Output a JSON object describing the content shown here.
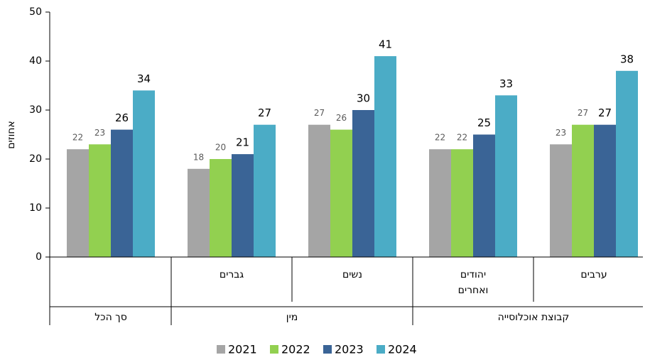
{
  "chart_data": {
    "type": "bar",
    "y_label": "אחוזים",
    "categories": [
      null,
      "גברים",
      "נשים",
      "יהודים ואחרים",
      "ערבים"
    ],
    "category_groups": [
      {
        "label": "סך הכל",
        "span": 1
      },
      {
        "label": "מין",
        "span": 2
      },
      {
        "label": "קבוצת אוכלוסייה",
        "span": 2
      }
    ],
    "series": [
      {
        "name": "2021",
        "color": "#a5a5a5",
        "values": [
          22,
          18,
          27,
          22,
          23
        ]
      },
      {
        "name": "2022",
        "color": "#92d050",
        "values": [
          23,
          20,
          26,
          22,
          27
        ]
      },
      {
        "name": "2023",
        "color": "#3a6496",
        "values": [
          26,
          21,
          30,
          25,
          27
        ]
      },
      {
        "name": "2024",
        "color": "#4bacc6",
        "values": [
          34,
          27,
          41,
          33,
          38
        ]
      }
    ],
    "ylim": [
      0,
      50
    ],
    "yticks": [
      0,
      10,
      20,
      30,
      40,
      50
    ],
    "grid": false,
    "legend": "bottom"
  }
}
